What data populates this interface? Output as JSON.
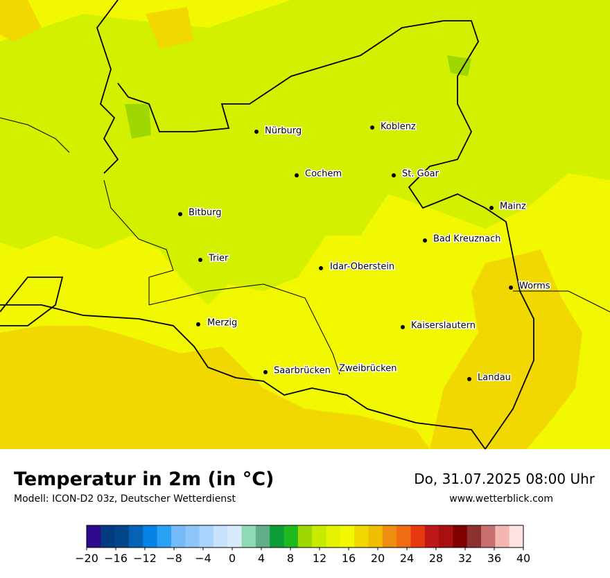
{
  "map": {
    "title": "Temperatur in 2m (in °C)",
    "subtitle": "Modell: ICON-D2 03z, Deutscher Wetterdienst",
    "valid_time": "Do, 31.07.2025 08:00 Uhr",
    "source": "www.wetterblick.com",
    "cities": [
      "Nürburg",
      "Koblenz",
      "Cochem",
      "St. Goar",
      "Mainz",
      "Bitburg",
      "Bad Kreuznach",
      "Trier",
      "Idar-Oberstein",
      "Worms",
      "Merzig",
      "Kaiserslautern",
      "Saarbrücken",
      "Zweibrücken",
      "Landau"
    ]
  },
  "colorbar": {
    "range": [
      -20,
      40
    ],
    "colors": [
      "#2e0a8c",
      "#023c7e",
      "#04468a",
      "#0563b5",
      "#0583e6",
      "#2aa0f5",
      "#74baf8",
      "#8fc6fa",
      "#a9d3fc",
      "#c6e2fd",
      "#d8ebfd",
      "#8fd9b8",
      "#62ad8a",
      "#0e9c38",
      "#1db91f",
      "#9fd800",
      "#c8ea00",
      "#e5f300",
      "#f2f800",
      "#f0d800",
      "#f0be00",
      "#f08c10",
      "#f06c10",
      "#e83810",
      "#c01818",
      "#a81010",
      "#800000",
      "#8c3030",
      "#c87070",
      "#f5b5b0",
      "#ffe2e2"
    ],
    "ticks": [
      {
        "value": -20,
        "label": "−20"
      },
      {
        "value": -16,
        "label": "−16"
      },
      {
        "value": -12,
        "label": "−12"
      },
      {
        "value": -8,
        "label": "−8"
      },
      {
        "value": -4,
        "label": "−4"
      },
      0,
      4,
      8,
      12,
      16,
      20,
      24,
      28,
      32,
      36,
      40
    ]
  }
}
